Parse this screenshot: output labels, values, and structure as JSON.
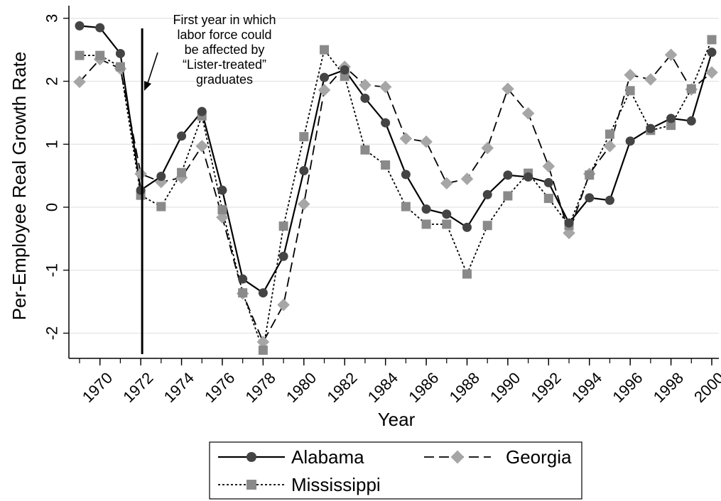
{
  "chart_data": {
    "type": "line",
    "title": "",
    "xlabel": "Year",
    "ylabel": "Per-Employee Real Growth Rate",
    "xlim": [
      1969,
      2000
    ],
    "ylim": [
      -2.4,
      3.2
    ],
    "yticks": [
      3,
      2,
      1,
      0,
      -1,
      -2
    ],
    "xticks": [
      1970,
      1972,
      1974,
      1976,
      1978,
      1980,
      1982,
      1984,
      1986,
      1988,
      1990,
      1992,
      1994,
      1996,
      1998,
      2000
    ],
    "grid": "horizontal",
    "legend_position": "bottom",
    "x": [
      1969,
      1970,
      1971,
      1972,
      1973,
      1974,
      1975,
      1976,
      1977,
      1978,
      1979,
      1980,
      1981,
      1982,
      1983,
      1984,
      1985,
      1986,
      1987,
      1988,
      1989,
      1990,
      1991,
      1992,
      1993,
      1994,
      1995,
      1996,
      1997,
      1998,
      1999,
      2000
    ],
    "series": [
      {
        "name": "Alabama",
        "color": "#444444",
        "dash": "solid",
        "marker": "circle",
        "values": [
          2.88,
          2.85,
          2.44,
          0.27,
          0.49,
          1.13,
          1.52,
          0.27,
          -1.14,
          -1.36,
          -0.78,
          0.58,
          2.06,
          2.18,
          1.73,
          1.34,
          0.52,
          -0.03,
          -0.11,
          -0.32,
          0.2,
          0.51,
          0.48,
          0.39,
          -0.25,
          0.15,
          0.11,
          1.05,
          1.25,
          1.41,
          1.37,
          2.46
        ]
      },
      {
        "name": "Georgia",
        "color": "#a6a6a6",
        "dash": "long-dash",
        "marker": "diamond",
        "values": [
          1.99,
          2.35,
          2.2,
          0.53,
          0.4,
          0.47,
          0.97,
          -0.16,
          -1.37,
          -2.14,
          -1.55,
          0.05,
          1.86,
          2.23,
          1.94,
          1.91,
          1.09,
          1.04,
          0.38,
          0.45,
          0.94,
          1.88,
          1.49,
          0.65,
          -0.41,
          0.53,
          0.97,
          2.1,
          2.03,
          2.42,
          1.87,
          2.14
        ]
      },
      {
        "name": "Mississippi",
        "color": "#8a8a8a",
        "dash": "short-dash",
        "marker": "square",
        "values": [
          2.41,
          2.41,
          2.23,
          0.19,
          0.01,
          0.55,
          1.45,
          -0.04,
          -1.36,
          -2.27,
          -0.3,
          1.12,
          2.5,
          2.08,
          0.91,
          0.67,
          0.01,
          -0.27,
          -0.27,
          -1.06,
          -0.29,
          0.18,
          0.54,
          0.14,
          -0.29,
          0.51,
          1.16,
          1.85,
          1.22,
          1.3,
          1.88,
          2.66
        ]
      }
    ],
    "annotations": [
      {
        "text_lines": [
          "First year in which",
          "labor force could",
          "be affected by",
          "“Lister-treated”",
          "graduates"
        ],
        "vline_x": 1972
      }
    ]
  }
}
